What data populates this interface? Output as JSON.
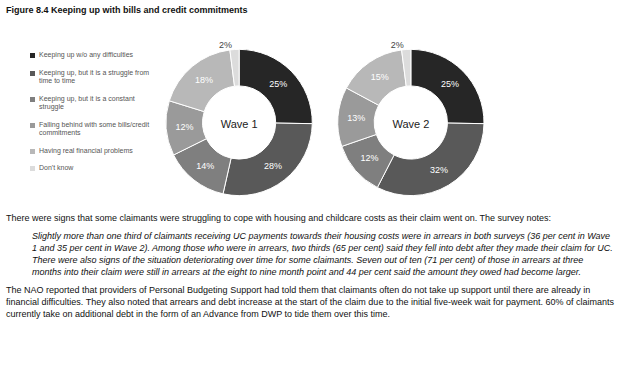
{
  "figure_title": "Figure 8.4 Keeping up with bills and credit commitments",
  "chart_data": [
    {
      "type": "donut",
      "title": "Wave 1",
      "categories": [
        "Keeping up w/o any difficulties",
        "Keeping up, but it is a struggle from time to time",
        "Keeping up, but it is a constant struggle",
        "Falling behind with some bills/credit commitments",
        "Having real financial problems",
        "Don't know"
      ],
      "values": [
        25,
        28,
        14,
        12,
        18,
        2
      ],
      "value_labels": [
        "25%",
        "28%",
        "14%",
        "12%",
        "18%",
        "2%"
      ],
      "colors": [
        "#262626",
        "#595959",
        "#7f7f7f",
        "#9a9a9a",
        "#b8b8b8",
        "#dcdcdc"
      ],
      "data_labels": true,
      "legend": "left"
    },
    {
      "type": "donut",
      "title": "Wave 2",
      "categories": [
        "Keeping up w/o any difficulties",
        "Keeping up, but it is a struggle from time to time",
        "Keeping up, but it is a constant struggle",
        "Falling behind with some bills/credit commitments",
        "Having real financial problems",
        "Don't know"
      ],
      "values": [
        25,
        32,
        12,
        13,
        15,
        2
      ],
      "value_labels": [
        "25%",
        "32%",
        "12%",
        "13%",
        "15%",
        "2%"
      ],
      "colors": [
        "#262626",
        "#595959",
        "#7f7f7f",
        "#9a9a9a",
        "#b8b8b8",
        "#dcdcdc"
      ],
      "data_labels": true
    }
  ],
  "intro": "There were signs that some claimants were struggling to cope with housing and childcare costs as their claim went on. The survey notes:",
  "quote": "Slightly more than one third of claimants receiving UC payments towards their housing costs were in arrears in both surveys (36 per cent in Wave 1 and 35 per cent in Wave 2). Among those who were in arrears, two thirds (65 per cent) said they fell into debt after they made their claim for UC. There were also signs of the situation deteriorating over time for some claimants. Seven out of ten (71 per cent) of those in arrears at three months into their claim were still in arrears at the eight to nine month point and 44 per cent said the amount they owed had become larger.",
  "conclusion": "The NAO reported that providers of Personal Budgeting Support had told them that claimants often do not take up support until there are already in financial difficulties. They also noted that arrears and debt increase at the start of the claim due to the initial five-week wait for payment. 60% of claimants currently take on additional debt in the form of an Advance from DWP to tide them over this time."
}
